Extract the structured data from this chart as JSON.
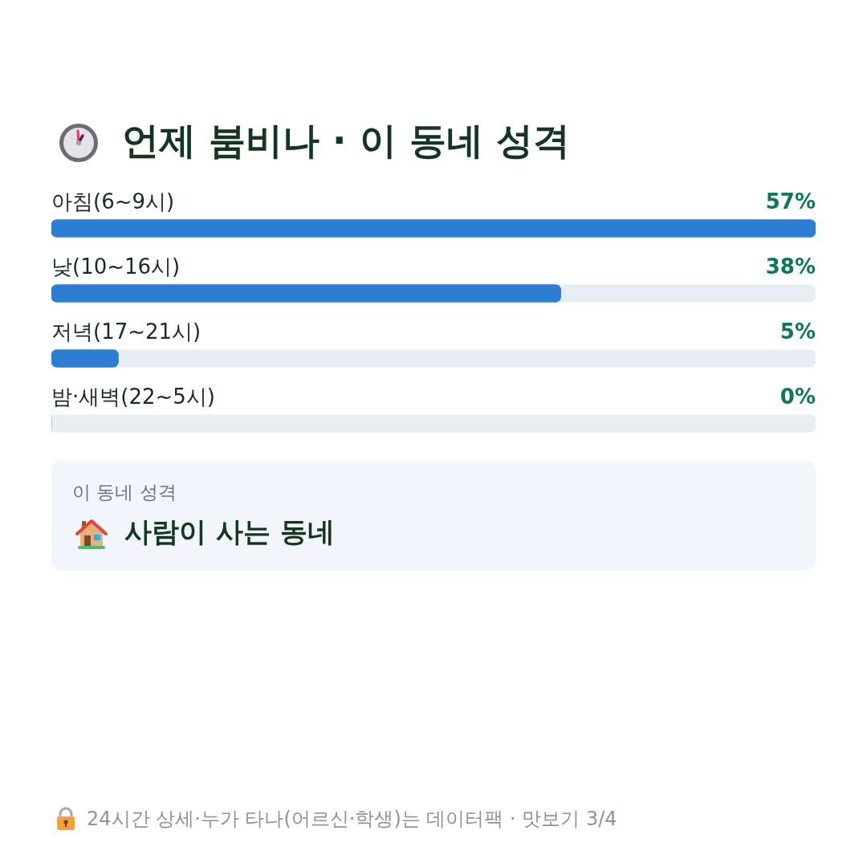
{
  "chart_data": {
    "type": "bar",
    "orientation": "horizontal",
    "title": "언제 붐비나 · 이 동네 성격",
    "categories": [
      "아침(6~9시)",
      "낮(10~16시)",
      "저녁(17~21시)",
      "밤·새벽(22~5시)"
    ],
    "values": [
      57,
      38,
      5,
      0
    ],
    "value_labels": [
      "57%",
      "38%",
      "5%",
      "0%"
    ],
    "color": "#2d7dd2",
    "xlim": [
      0,
      57
    ],
    "tick_labels": false,
    "grid": false,
    "legend": false,
    "annotations": [
      "이 동네 성격",
      "사람이 사는 동네",
      "24시간 상세·누가 타나(어르신·학생)는 데이터팩 · 맛보기 3/4"
    ]
  }
}
